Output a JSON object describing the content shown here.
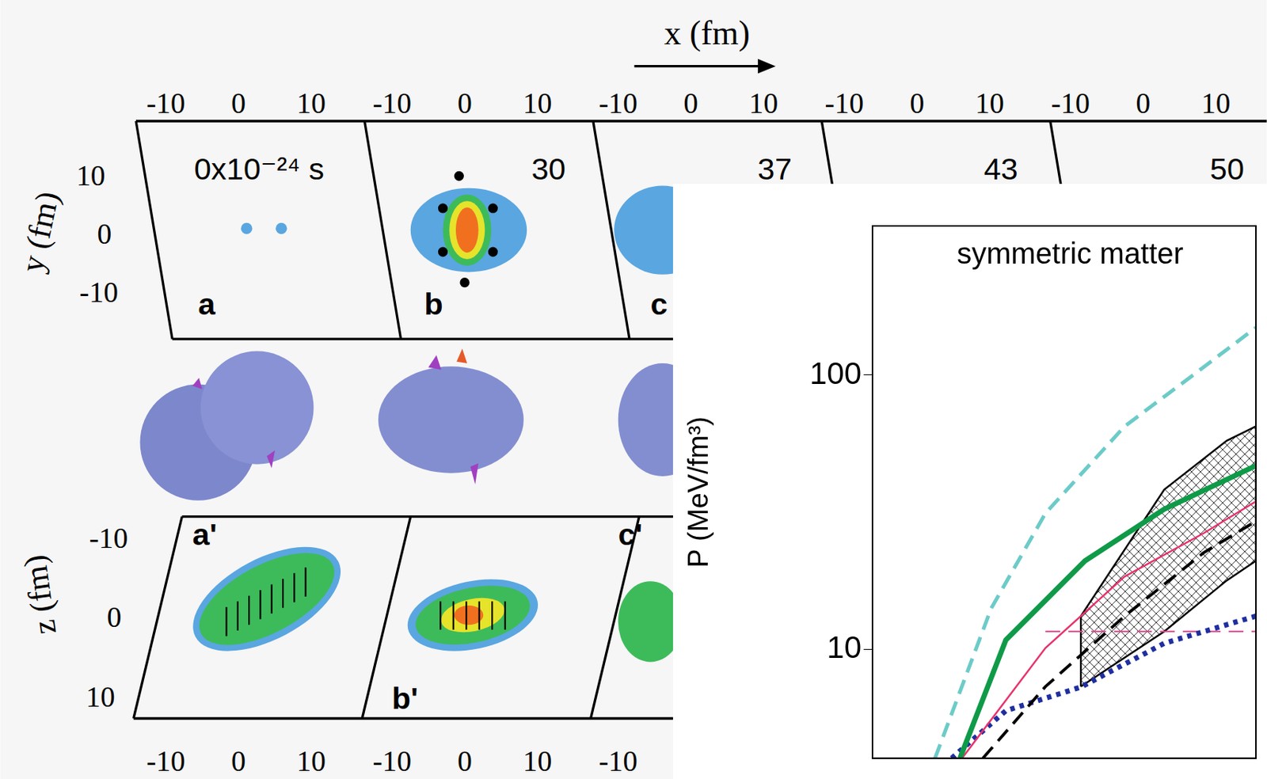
{
  "chart_data": {
    "type": "line",
    "annotation": "symmetric matter",
    "y_title": "P (MeV/fm³)",
    "log": "y",
    "grid": false,
    "tick_labels": "y",
    "xlim": [
      1.0,
      2.84
    ],
    "ylim": [
      4,
      350
    ],
    "yticks": [
      10,
      100
    ],
    "series": [
      {
        "color": "#6ccbc8",
        "line_style": "dashed",
        "x": [
          1.3,
          1.57,
          1.83,
          2.21,
          2.59,
          2.84
        ],
        "values": [
          4.0,
          14.1,
          31.3,
          65,
          107,
          149
        ]
      },
      {
        "color": "#0f9a48",
        "line_style": "solid",
        "x": [
          1.42,
          1.64,
          2.02,
          2.4,
          2.84
        ],
        "values": [
          4.0,
          10.8,
          21,
          32.4,
          46.7
        ]
      },
      {
        "color": "#e8336b",
        "line_style": "solid",
        "x": [
          1.43,
          1.83,
          2.21,
          2.59,
          2.84
        ],
        "values": [
          4.0,
          10.1,
          18.4,
          26.5,
          34.6
        ]
      },
      {
        "color": "#000000",
        "line_style": "dashed",
        "x": [
          1.53,
          1.83,
          2.21,
          2.59,
          2.84
        ],
        "values": [
          4.0,
          7.3,
          13.2,
          22.5,
          29.3
        ]
      },
      {
        "color": "#1f2fa0",
        "line_style": "dotted",
        "x": [
          1.38,
          1.64,
          2.0,
          2.4,
          2.84
        ],
        "values": [
          4.0,
          5.96,
          7.27,
          10.5,
          13.2
        ]
      },
      {
        "color": "#d9458a",
        "line_style": "dashed",
        "x": [
          1.83,
          2.84
        ],
        "values": [
          11.6,
          11.6
        ]
      }
    ],
    "band": {
      "color": "#000000",
      "x": [
        2.0,
        2.4,
        2.7,
        2.84
      ],
      "lower": [
        7.3,
        11.6,
        17.8,
        21
      ],
      "upper": [
        13.2,
        38.2,
        57.6,
        65
      ]
    }
  },
  "diagram": {
    "x_title": "x (fm)",
    "x_ticks": [
      -10,
      0,
      10
    ],
    "top_row": {
      "times": [
        "0x10⁻²⁴ s",
        "30",
        "37",
        "43",
        "50"
      ],
      "letters": [
        "a",
        "b",
        "c"
      ],
      "y_title": "y (fm)",
      "y_ticks": [
        10,
        0,
        -10
      ]
    },
    "bottom_row": {
      "letters": [
        "a'",
        "b'",
        "c'"
      ],
      "z_title": "z (fm)",
      "z_ticks": [
        -10,
        0,
        10
      ]
    }
  }
}
